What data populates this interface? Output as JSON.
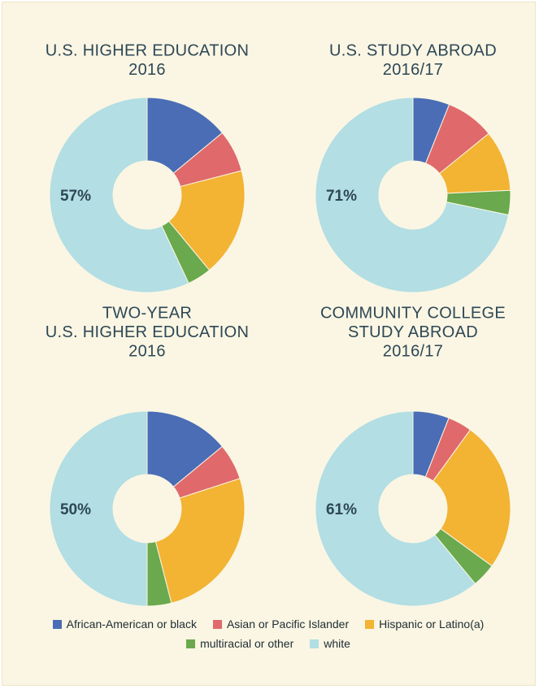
{
  "chart_data": [
    {
      "type": "pie",
      "donut": true,
      "title": [
        "U.S. HIGHER EDUCATION",
        "2016"
      ],
      "categories": [
        "African-American or black",
        "Asian or Pacific Islander",
        "Hispanic or Latino(a)",
        "multiracial or other",
        "white"
      ],
      "colors": [
        "#4a6db6",
        "#e0696b",
        "#f3b333",
        "#6aa94d",
        "#b2dee4"
      ],
      "values": [
        14,
        7,
        18,
        4,
        57
      ],
      "value_labels": [
        null,
        null,
        null,
        null,
        "57%"
      ]
    },
    {
      "type": "pie",
      "donut": true,
      "title": [
        "U.S. STUDY ABROAD",
        "2016/17"
      ],
      "categories": [
        "African-American or black",
        "Asian or Pacific Islander",
        "Hispanic or Latino(a)",
        "multiracial or other",
        "white"
      ],
      "colors": [
        "#4a6db6",
        "#e0696b",
        "#f3b333",
        "#6aa94d",
        "#b2dee4"
      ],
      "values": [
        6,
        8,
        10,
        4,
        71
      ],
      "value_labels": [
        null,
        null,
        null,
        null,
        "71%"
      ]
    },
    {
      "type": "pie",
      "donut": true,
      "title": [
        "TWO-YEAR",
        "U.S. HIGHER EDUCATION",
        "2016"
      ],
      "categories": [
        "African-American or black",
        "Asian or Pacific Islander",
        "Hispanic or Latino(a)",
        "multiracial or other",
        "white"
      ],
      "colors": [
        "#4a6db6",
        "#e0696b",
        "#f3b333",
        "#6aa94d",
        "#b2dee4"
      ],
      "values": [
        14,
        6,
        26,
        4,
        50
      ],
      "value_labels": [
        null,
        null,
        null,
        null,
        "50%"
      ]
    },
    {
      "type": "pie",
      "donut": true,
      "title": [
        "COMMUNITY COLLEGE",
        "STUDY ABROAD",
        "2016/17"
      ],
      "categories": [
        "African-American or black",
        "Asian or Pacific Islander",
        "Hispanic or Latino(a)",
        "multiracial or other",
        "white"
      ],
      "colors": [
        "#4a6db6",
        "#e0696b",
        "#f3b333",
        "#6aa94d",
        "#b2dee4"
      ],
      "values": [
        6,
        4,
        25,
        4,
        61
      ],
      "value_labels": [
        null,
        null,
        null,
        null,
        "61%"
      ]
    }
  ]
}
